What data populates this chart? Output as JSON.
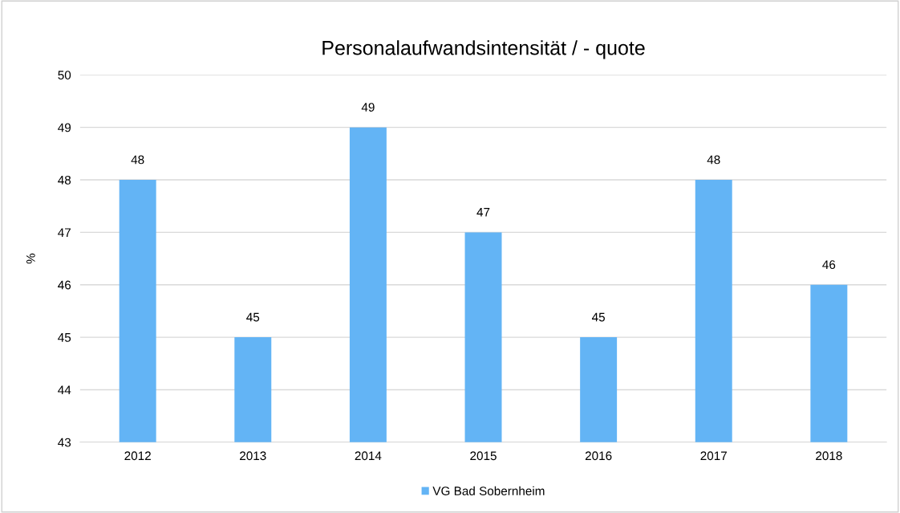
{
  "chart_data": {
    "type": "bar",
    "title": "Personalaufwandsintensität / - quote",
    "ylabel": "%",
    "categories": [
      "2012",
      "2013",
      "2014",
      "2015",
      "2016",
      "2017",
      "2018"
    ],
    "series": [
      {
        "name": "VG Bad Sobernheim",
        "color": "#63b4f5",
        "values": [
          48,
          45,
          49,
          47,
          45,
          48,
          46
        ]
      }
    ],
    "ylim": [
      43,
      50
    ],
    "yticks": [
      43,
      44,
      45,
      46,
      47,
      48,
      49,
      50
    ],
    "grid": "y",
    "legend": "bottom",
    "data_labels": true
  }
}
